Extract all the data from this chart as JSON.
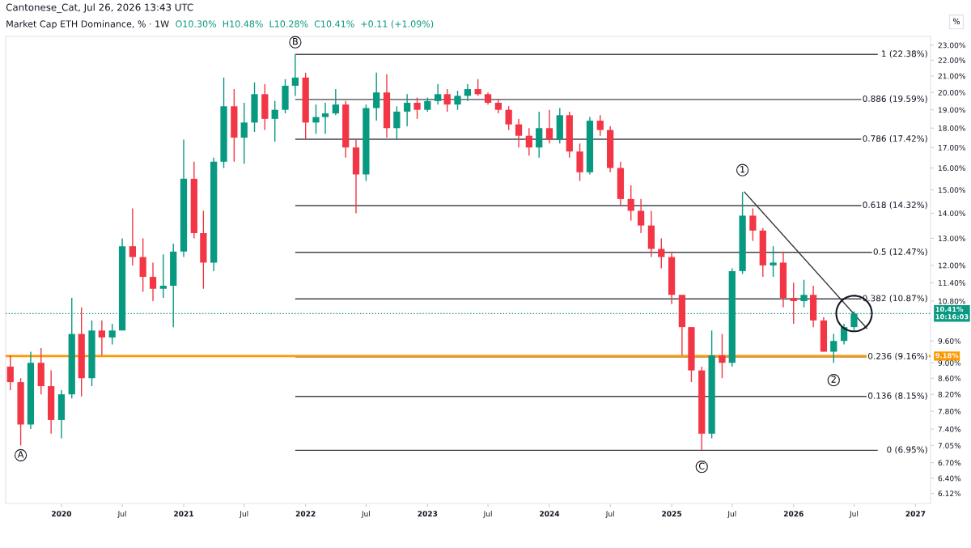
{
  "chart_data": {
    "type": "candlestick",
    "title": "Market Cap ETH Dominance, % · 1W",
    "annotations": [
      "Cantonese_Cat, Jul 26, 2026 13:43 UTC",
      "O10.30%  H10.48%  L10.28%  C10.41%  +0.11 (+1.09%)",
      "%",
      {
        "text": "A",
        "x": "2019-09",
        "y": 6.85
      },
      {
        "text": "B",
        "x": "2021-12",
        "y": 23.2
      },
      {
        "text": "C",
        "x": "2025-04",
        "y": 6.62
      },
      {
        "text": "1",
        "x": "2025-08",
        "y": 15.9
      },
      {
        "text": "2",
        "x": "2026-05",
        "y": 8.55
      }
    ],
    "x": [
      "2019-08",
      "2019-09",
      "2019-10",
      "2019-11",
      "2019-12",
      "2020-01",
      "2020-02",
      "2020-03",
      "2020-04",
      "2020-05",
      "2020-06",
      "2020-07",
      "2020-08",
      "2020-09",
      "2020-10",
      "2020-11",
      "2020-12",
      "2021-01",
      "2021-02",
      "2021-03",
      "2021-04",
      "2021-05",
      "2021-06",
      "2021-07",
      "2021-08",
      "2021-09",
      "2021-10",
      "2021-11",
      "2021-12",
      "2022-01",
      "2022-02",
      "2022-03",
      "2022-04",
      "2022-05",
      "2022-06",
      "2022-07",
      "2022-08",
      "2022-09",
      "2022-10",
      "2022-11",
      "2022-12",
      "2023-01",
      "2023-02",
      "2023-03",
      "2023-04",
      "2023-05",
      "2023-06",
      "2023-07",
      "2023-08",
      "2023-09",
      "2023-10",
      "2023-11",
      "2023-12",
      "2024-01",
      "2024-02",
      "2024-03",
      "2024-04",
      "2024-05",
      "2024-06",
      "2024-07",
      "2024-08",
      "2024-09",
      "2024-10",
      "2024-11",
      "2024-12",
      "2025-01",
      "2025-02",
      "2025-03",
      "2025-04",
      "2025-05",
      "2025-06",
      "2025-07",
      "2025-08",
      "2025-09",
      "2025-10",
      "2025-11",
      "2025-12",
      "2026-01",
      "2026-02",
      "2026-03",
      "2026-04",
      "2026-05",
      "2026-06",
      "2026-07"
    ],
    "ohlc": [
      [
        8.9,
        9.2,
        8.3,
        8.5
      ],
      [
        8.5,
        8.6,
        7.05,
        7.5
      ],
      [
        7.5,
        9.3,
        7.4,
        9.0
      ],
      [
        9.0,
        9.4,
        8.2,
        8.4
      ],
      [
        8.4,
        8.8,
        7.3,
        7.6
      ],
      [
        7.6,
        8.3,
        7.2,
        8.2
      ],
      [
        8.2,
        10.9,
        8.1,
        9.8
      ],
      [
        9.8,
        10.6,
        8.15,
        8.6
      ],
      [
        8.6,
        10.2,
        8.4,
        9.9
      ],
      [
        9.9,
        10.2,
        9.2,
        9.7
      ],
      [
        9.7,
        10.1,
        9.5,
        9.9
      ],
      [
        9.9,
        13.0,
        9.9,
        12.7
      ],
      [
        12.7,
        14.2,
        12.0,
        12.3
      ],
      [
        12.3,
        13.0,
        11.1,
        11.6
      ],
      [
        11.6,
        12.1,
        10.8,
        11.2
      ],
      [
        11.2,
        12.4,
        10.9,
        11.3
      ],
      [
        11.3,
        12.8,
        10.0,
        12.5
      ],
      [
        12.5,
        17.4,
        12.3,
        15.5
      ],
      [
        15.5,
        16.3,
        13.0,
        13.2
      ],
      [
        13.2,
        14.1,
        11.2,
        12.1
      ],
      [
        12.1,
        16.5,
        11.8,
        16.3
      ],
      [
        16.3,
        20.9,
        16.0,
        19.2
      ],
      [
        19.2,
        20.2,
        16.3,
        17.5
      ],
      [
        17.5,
        19.4,
        16.2,
        18.3
      ],
      [
        18.3,
        20.6,
        17.8,
        19.9
      ],
      [
        19.9,
        20.5,
        17.9,
        18.5
      ],
      [
        18.5,
        19.5,
        17.3,
        19.0
      ],
      [
        19.0,
        20.8,
        18.8,
        20.4
      ],
      [
        20.4,
        22.38,
        19.8,
        20.9
      ],
      [
        20.9,
        21.2,
        17.4,
        18.3
      ],
      [
        18.3,
        19.3,
        17.7,
        18.6
      ],
      [
        18.6,
        19.4,
        17.7,
        18.8
      ],
      [
        18.8,
        20.2,
        18.7,
        19.3
      ],
      [
        19.3,
        19.5,
        16.5,
        17.0
      ],
      [
        17.0,
        17.4,
        14.0,
        15.7
      ],
      [
        15.7,
        19.3,
        15.4,
        19.1
      ],
      [
        19.1,
        21.2,
        18.4,
        20.0
      ],
      [
        20.0,
        21.1,
        17.5,
        18.0
      ],
      [
        18.0,
        19.2,
        17.4,
        18.9
      ],
      [
        18.9,
        19.9,
        18.1,
        19.4
      ],
      [
        19.4,
        19.7,
        18.5,
        19.0
      ],
      [
        19.0,
        19.7,
        18.9,
        19.5
      ],
      [
        19.5,
        20.5,
        19.3,
        19.9
      ],
      [
        19.9,
        20.2,
        18.9,
        19.3
      ],
      [
        19.3,
        20.1,
        19.0,
        19.8
      ],
      [
        19.8,
        20.5,
        19.5,
        20.2
      ],
      [
        20.2,
        20.8,
        19.8,
        19.9
      ],
      [
        19.9,
        20.0,
        19.3,
        19.4
      ],
      [
        19.4,
        19.6,
        18.8,
        19.0
      ],
      [
        19.0,
        19.2,
        17.9,
        18.2
      ],
      [
        18.2,
        18.5,
        17.0,
        17.6
      ],
      [
        17.6,
        18.0,
        16.6,
        17.0
      ],
      [
        17.0,
        18.9,
        16.5,
        18.0
      ],
      [
        18.0,
        19.0,
        17.2,
        17.4
      ],
      [
        17.4,
        19.1,
        17.2,
        18.7
      ],
      [
        18.7,
        18.9,
        16.5,
        16.8
      ],
      [
        16.8,
        17.2,
        15.4,
        15.8
      ],
      [
        15.8,
        18.6,
        15.7,
        18.4
      ],
      [
        18.4,
        18.7,
        17.6,
        17.9
      ],
      [
        17.9,
        18.1,
        15.8,
        16.0
      ],
      [
        16.0,
        16.3,
        14.3,
        14.6
      ],
      [
        14.6,
        15.2,
        13.7,
        14.1
      ],
      [
        14.1,
        14.6,
        13.2,
        13.5
      ],
      [
        13.5,
        14.1,
        12.3,
        12.6
      ],
      [
        12.6,
        13.0,
        11.9,
        12.3
      ],
      [
        12.3,
        12.5,
        10.7,
        11.0
      ],
      [
        11.0,
        11.0,
        9.2,
        10.0
      ],
      [
        10.0,
        10.0,
        8.5,
        8.8
      ],
      [
        8.8,
        8.9,
        6.95,
        7.3
      ],
      [
        7.3,
        9.9,
        7.2,
        9.2
      ],
      [
        9.2,
        9.8,
        8.6,
        9.0
      ],
      [
        9.0,
        11.9,
        8.9,
        11.8
      ],
      [
        11.8,
        14.9,
        11.7,
        13.9
      ],
      [
        13.9,
        14.2,
        12.9,
        13.3
      ],
      [
        13.3,
        13.4,
        11.6,
        12.0
      ],
      [
        12.0,
        12.7,
        11.6,
        12.1
      ],
      [
        12.1,
        12.5,
        10.6,
        10.9
      ],
      [
        10.9,
        11.4,
        10.1,
        10.8
      ],
      [
        10.8,
        11.5,
        10.6,
        11.0
      ],
      [
        11.0,
        11.3,
        10.0,
        10.2
      ],
      [
        10.2,
        10.3,
        9.3,
        9.3
      ],
      [
        9.3,
        9.8,
        9.0,
        9.6
      ],
      [
        9.6,
        10.1,
        9.5,
        10.0
      ],
      [
        10.0,
        10.48,
        9.9,
        10.41
      ]
    ],
    "colors": [
      "#f23645",
      "#f23645",
      "#089981",
      "#f23645",
      "#f23645",
      "#089981",
      "#089981",
      "#f23645",
      "#089981",
      "#f23645",
      "#089981",
      "#089981",
      "#f23645",
      "#f23645",
      "#f23645",
      "#089981",
      "#089981",
      "#089981",
      "#f23645",
      "#f23645",
      "#089981",
      "#089981",
      "#f23645",
      "#089981",
      "#089981",
      "#f23645",
      "#089981",
      "#089981",
      "#089981",
      "#f23645",
      "#089981",
      "#089981",
      "#089981",
      "#f23645",
      "#f23645",
      "#089981",
      "#089981",
      "#f23645",
      "#089981",
      "#089981",
      "#f23645",
      "#089981",
      "#089981",
      "#f23645",
      "#089981",
      "#089981",
      "#f23645",
      "#f23645",
      "#f23645",
      "#f23645",
      "#f23645",
      "#f23645",
      "#089981",
      "#f23645",
      "#089981",
      "#f23645",
      "#f23645",
      "#089981",
      "#f23645",
      "#f23645",
      "#f23645",
      "#f23645",
      "#f23645",
      "#f23645",
      "#f23645",
      "#f23645",
      "#f23645",
      "#f23645",
      "#f23645",
      "#089981",
      "#f23645",
      "#089981",
      "#089981",
      "#f23645",
      "#f23645",
      "#089981",
      "#f23645",
      "#f23645",
      "#089981",
      "#f23645",
      "#f23645",
      "#089981",
      "#089981",
      "#089981"
    ],
    "series": [
      {
        "type": "line",
        "color": "#333333",
        "x": [
          "2025-08-07",
          "2026-08-08"
        ],
        "values": [
          14.9,
          9.97
        ]
      }
    ],
    "ref_lines": [
      {
        "axis": "y",
        "value": 22.38,
        "label": "1 (22.38%)"
      },
      {
        "axis": "y",
        "value": 19.59,
        "label": "0.886 (19.59%)"
      },
      {
        "axis": "y",
        "value": 17.42,
        "label": "0.786 (17.42%)"
      },
      {
        "axis": "y",
        "value": 14.32,
        "label": "0.618 (14.32%)"
      },
      {
        "axis": "y",
        "value": 12.47,
        "label": "0.5 (12.47%)"
      },
      {
        "axis": "y",
        "value": 10.87,
        "label": "0.382 (10.87%)"
      },
      {
        "axis": "y",
        "value": 9.16,
        "label": "0.236 (9.16%)"
      },
      {
        "axis": "y",
        "value": 8.15,
        "label": "0.136 (8.15%)"
      },
      {
        "axis": "y",
        "value": 6.95,
        "label": "0 (6.95%)"
      },
      {
        "axis": "y",
        "value": 9.18,
        "label": "9.18%",
        "color": "#ff9800",
        "line_style": "solid"
      },
      {
        "axis": "y",
        "value": 10.41,
        "label": "10.41%\n10:16:03",
        "color": "#089981",
        "line_style": "dotted"
      }
    ],
    "log": "y",
    "ylim": [
      5.94,
      23.6
    ],
    "yticks": [
      {
        "value": 23,
        "label": "23.00%"
      },
      {
        "value": 22,
        "label": "22.00%"
      },
      {
        "value": 21,
        "label": "21.00%"
      },
      {
        "value": 20,
        "label": "20.00%"
      },
      {
        "value": 19,
        "label": "19.00%"
      },
      {
        "value": 18,
        "label": "18.00%"
      },
      {
        "value": 17,
        "label": "17.00%"
      },
      {
        "value": 16,
        "label": "16.00%"
      },
      {
        "value": 15,
        "label": "15.00%"
      },
      {
        "value": 14,
        "label": "14.00%"
      },
      {
        "value": 13,
        "label": "13.00%"
      },
      {
        "value": 12,
        "label": "12.00%"
      },
      {
        "value": 11.4,
        "label": "11.40%"
      },
      {
        "value": 10.8,
        "label": "10.80%"
      },
      {
        "value": 9.6,
        "label": "9.60%"
      },
      {
        "value": 9.0,
        "label": "9.00%"
      },
      {
        "value": 8.6,
        "label": "8.60%"
      },
      {
        "value": 8.2,
        "label": "8.20%"
      },
      {
        "value": 7.8,
        "label": "7.80%"
      },
      {
        "value": 7.4,
        "label": "7.40%"
      },
      {
        "value": 7.05,
        "label": "7.05%"
      },
      {
        "value": 6.7,
        "label": "6.70%"
      },
      {
        "value": 6.4,
        "label": "6.40%"
      },
      {
        "value": 6.12,
        "label": "6.12%"
      }
    ],
    "xlim": [
      "2019-07-18",
      "2027-02-15"
    ],
    "xticks": [
      {
        "value": "2020-01-01",
        "label": "2020"
      },
      {
        "value": "2020-07-01",
        "label": "Jul"
      },
      {
        "value": "2021-01-01",
        "label": "2021"
      },
      {
        "value": "2021-07-01",
        "label": "Jul"
      },
      {
        "value": "2022-01-01",
        "label": "2022"
      },
      {
        "value": "2022-07-01",
        "label": "Jul"
      },
      {
        "value": "2023-01-01",
        "label": "2023"
      },
      {
        "value": "2023-07-01",
        "label": "Jul"
      },
      {
        "value": "2024-01-01",
        "label": "2024"
      },
      {
        "value": "2024-07-01",
        "label": "Jul"
      },
      {
        "value": "2025-01-01",
        "label": "2025"
      },
      {
        "value": "2025-07-01",
        "label": "Jul"
      },
      {
        "value": "2026-01-01",
        "label": "2026"
      },
      {
        "value": "2026-07-01",
        "label": "Jul"
      },
      {
        "value": "2027-01-01",
        "label": "2027"
      }
    ],
    "grid": false
  }
}
